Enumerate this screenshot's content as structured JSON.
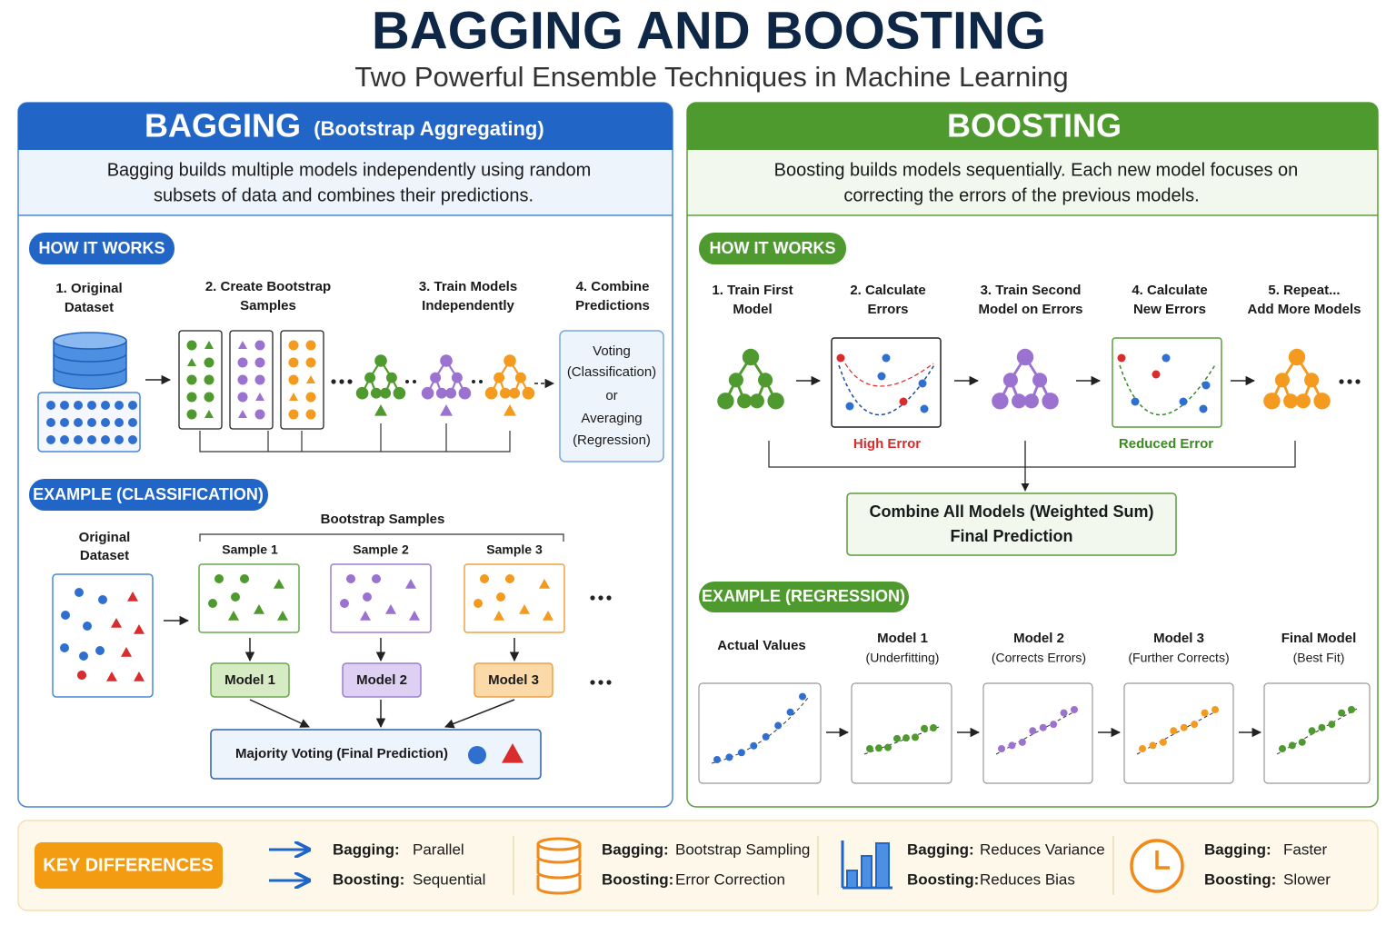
{
  "header": {
    "title": "BAGGING AND BOOSTING",
    "subtitle": "Two Powerful Ensemble Techniques in Machine Learning"
  },
  "bagging": {
    "title": "BAGGING",
    "title_note": "(Bootstrap Aggregating)",
    "description": [
      "Bagging builds multiple models independently using random",
      "subsets of data and combines their predictions."
    ],
    "how_label": "HOW IT WORKS",
    "steps": [
      [
        "1. Original",
        "Dataset"
      ],
      [
        "2. Create Bootstrap",
        "Samples"
      ],
      [
        "3. Train Models",
        "Independently"
      ],
      [
        "4. Combine",
        "Predictions"
      ]
    ],
    "combine_box": [
      "Voting",
      "(Classification)",
      "or",
      "Averaging",
      "(Regression)"
    ],
    "example_label": "EXAMPLE (CLASSIFICATION)",
    "original": [
      "Original",
      "Dataset"
    ],
    "samples_label": "Bootstrap Samples",
    "samples": [
      "Sample 1",
      "Sample 2",
      "Sample 3"
    ],
    "models": [
      "Model 1",
      "Model 2",
      "Model 3"
    ],
    "final": "Majority Voting (Final Prediction)"
  },
  "boosting": {
    "title": "BOOSTING",
    "description": [
      "Boosting builds models sequentially. Each new model focuses on",
      "correcting the errors of the previous models."
    ],
    "how_label": "HOW IT WORKS",
    "steps": [
      [
        "1. Train First",
        "Model"
      ],
      [
        "2. Calculate",
        "Errors"
      ],
      [
        "3. Train Second",
        "Model on Errors"
      ],
      [
        "4. Calculate",
        "New Errors"
      ],
      [
        "5. Repeat...",
        "Add More Models"
      ]
    ],
    "error_labels": [
      "High Error",
      "Reduced Error"
    ],
    "combine": [
      "Combine All Models (Weighted Sum)",
      "Final Prediction"
    ],
    "example_label": "EXAMPLE (REGRESSION)",
    "examples": [
      {
        "title": "Actual Values"
      },
      {
        "title": "Model 1",
        "note": "(Underfitting)"
      },
      {
        "title": "Model 2",
        "note": "(Corrects Errors)"
      },
      {
        "title": "Model 3",
        "note": "(Further Corrects)"
      },
      {
        "title": "Final Model",
        "note": "(Best Fit)"
      }
    ]
  },
  "key_differences": {
    "label": "KEY DIFFERENCES",
    "items": [
      [
        {
          "key": "Bagging:",
          "value": "Parallel"
        },
        {
          "key": "Boosting:",
          "value": "Sequential"
        }
      ],
      [
        {
          "key": "Bagging:",
          "value": "Bootstrap Sampling"
        },
        {
          "key": "Boosting:",
          "value": "Error Correction"
        }
      ],
      [
        {
          "key": "Bagging:",
          "value": "Reduces Variance"
        },
        {
          "key": "Boosting:",
          "value": "Reduces Bias"
        }
      ],
      [
        {
          "key": "Bagging:",
          "value": "Faster"
        },
        {
          "key": "Boosting:",
          "value": "Slower"
        }
      ]
    ]
  }
}
